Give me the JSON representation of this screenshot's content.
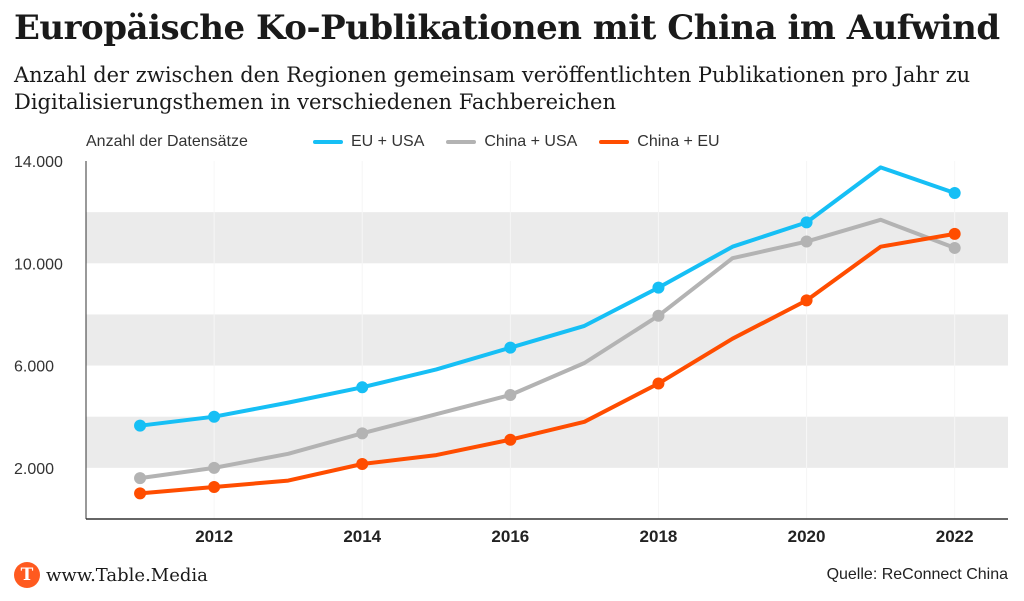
{
  "header": {
    "title": "Europäische Ko-Publikationen mit China im Aufwind",
    "subtitle": "Anzahl der zwischen den Regionen gemeinsam veröffentlichten Publikationen pro Jahr zu Digitalisierungsthemen in verschiedenen Fachbereichen"
  },
  "footer": {
    "site": "www.Table.Media",
    "logo_letter": "T",
    "source": "Quelle: ReConnect China"
  },
  "colors": {
    "eu_usa": "#16bff5",
    "china_usa": "#b3b3b3",
    "china_eu": "#ff4d00",
    "band": "#ebebeb",
    "logo": "#ff5a1f"
  },
  "chart_data": {
    "type": "line",
    "ylabel": "Anzahl der Datensätze",
    "x": [
      2011,
      2012,
      2013,
      2014,
      2015,
      2016,
      2017,
      2018,
      2019,
      2020,
      2021,
      2022
    ],
    "x_tick_labels": [
      "2012",
      "2014",
      "2016",
      "2018",
      "2020",
      "2022"
    ],
    "y_tick_labels": [
      "2.000",
      "6.000",
      "10.000",
      "14.000"
    ],
    "ylim": [
      0,
      14000
    ],
    "series": [
      {
        "name": "EU + USA",
        "color": "#16bff5",
        "values": [
          3650,
          4000,
          4550,
          5150,
          5850,
          6700,
          7550,
          9050,
          10650,
          11600,
          13750,
          12750
        ],
        "marker_years": [
          2011,
          2012,
          2014,
          2016,
          2018,
          2020,
          2022
        ]
      },
      {
        "name": "China + USA",
        "color": "#b3b3b3",
        "values": [
          1600,
          2000,
          2550,
          3350,
          4100,
          4850,
          6100,
          7950,
          10200,
          10850,
          11700,
          10600
        ],
        "marker_years": [
          2011,
          2012,
          2014,
          2016,
          2018,
          2020,
          2022
        ]
      },
      {
        "name": "China + EU",
        "color": "#ff4d00",
        "values": [
          1000,
          1250,
          1500,
          2150,
          2500,
          3100,
          3800,
          5300,
          7050,
          8550,
          10650,
          11150
        ],
        "marker_years": [
          2011,
          2012,
          2014,
          2016,
          2018,
          2020,
          2022
        ]
      }
    ],
    "grid": "alternating horizontal bands",
    "legend": "top"
  }
}
